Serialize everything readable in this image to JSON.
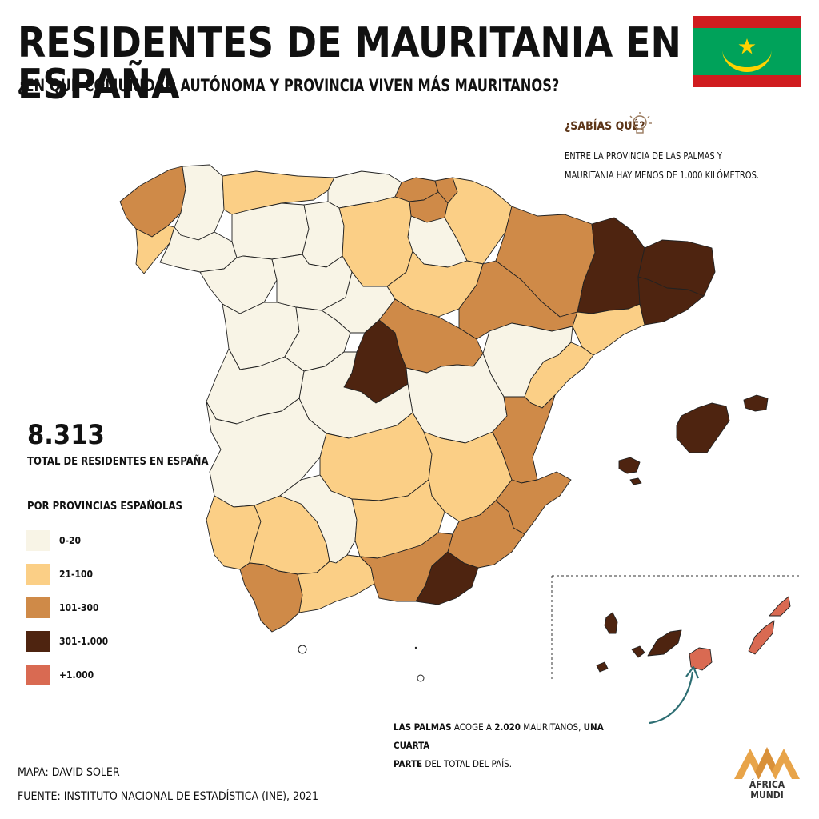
{
  "header": {
    "title": "RESIDENTES DE MAURITANIA EN ESPAÑA",
    "subtitle": "¿EN QUÉ COMUNIDAD AUTÓNOMA Y PROVINCIA VIVEN MÁS MAURITANOS?"
  },
  "did_you_know": {
    "title": "¿SABÍAS QUÉ?",
    "line1": "ENTRE LA PROVINCIA DE LAS PALMAS  Y",
    "line2": "MAURITANIA HAY MENOS DE 1.000 KILÓMETROS."
  },
  "totals": {
    "value": "8.313",
    "label": "TOTAL DE RESIDENTES EN ESPAÑA"
  },
  "legend": {
    "title": "POR PROVINCIAS ESPAÑOLAS",
    "items": [
      {
        "label": "0-20",
        "color": "#f8f4e6"
      },
      {
        "label": "21-100",
        "color": "#fbcf86"
      },
      {
        "label": "101-300",
        "color": "#cf8a48"
      },
      {
        "label": "301-1.000",
        "color": "#4e2410"
      },
      {
        "label": "+1.000",
        "color": "#d96a52"
      }
    ]
  },
  "palmas_note": {
    "part1": "LAS PALMAS",
    "part2": " ACOGE A ",
    "part3": "2.020",
    "part4": " MAURITANOS, ",
    "part5": "UNA CUARTA",
    "part6": "PARTE",
    "part7": " DEL TOTAL DEL PAÍS."
  },
  "credits": {
    "map": "MAPA: DAVID SOLER",
    "source": "FUENTE: INSTITUTO NACIONAL DE ESTADÍSTICA (INE), 2021"
  },
  "logo": {
    "line1": "ÁFRICA",
    "line2": "MUNDI"
  },
  "colors": {
    "level0": "#f8f4e6",
    "level1": "#fbcf86",
    "level2": "#cf8a48",
    "level3": "#4e2410",
    "level4": "#d96a52",
    "arrow": "#2d6e73",
    "flag_green": "#00a25a",
    "flag_red": "#d01c1f",
    "flag_gold": "#ffd200"
  }
}
